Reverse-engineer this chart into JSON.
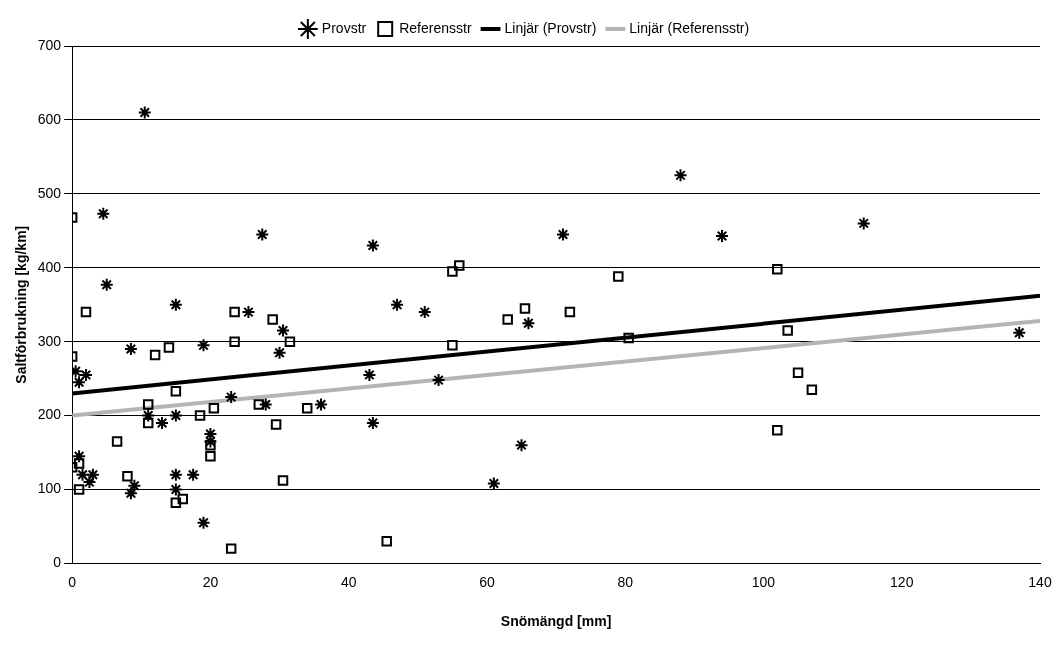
{
  "chart_data": {
    "type": "scatter",
    "xlabel": "Snömängd [mm]",
    "ylabel": "Saltförbrukning [kg/km]",
    "xlim": [
      0,
      140
    ],
    "xticks": [
      0,
      20,
      40,
      60,
      80,
      100,
      120,
      140
    ],
    "ylim": [
      0,
      700
    ],
    "yticks": [
      0,
      100,
      200,
      300,
      400,
      500,
      600,
      700
    ],
    "grid": "y",
    "legend": "top",
    "series": [
      {
        "name": "Provstr",
        "marker": "cross",
        "color": "#000000",
        "x": [
          0.5,
          1,
          2,
          1,
          1.5,
          2.5,
          3,
          8.5,
          8.5,
          9,
          10.5,
          4.5,
          5,
          11,
          13,
          15,
          15,
          15,
          15,
          17.5,
          19,
          19,
          20,
          20,
          23,
          25.5,
          27.5,
          28,
          30,
          30.5,
          36,
          43,
          43.5,
          43.5,
          47,
          51,
          53,
          61,
          65,
          66,
          71,
          88,
          94,
          114.5,
          137
        ],
        "values": [
          260,
          245,
          255,
          145,
          120,
          110,
          120,
          290,
          95,
          105,
          610,
          473,
          377,
          200,
          190,
          350,
          200,
          120,
          100,
          120,
          55,
          295,
          175,
          165,
          225,
          340,
          445,
          215,
          285,
          315,
          215,
          255,
          430,
          190,
          350,
          340,
          248,
          108,
          160,
          325,
          445,
          525,
          443,
          460,
          312
        ]
      },
      {
        "name": "Referensstr",
        "marker": "square",
        "color": "#000000",
        "x": [
          0,
          0,
          0,
          1,
          1,
          2,
          6.5,
          8,
          11,
          11,
          12,
          14,
          15,
          15,
          16,
          18.5,
          20,
          20,
          20.5,
          23.5,
          23.5,
          23,
          27,
          29,
          29.5,
          30.5,
          31.5,
          34,
          45.5,
          55,
          56,
          55,
          63,
          65.5,
          72,
          79,
          80.5,
          102,
          102,
          103.5,
          105,
          107
        ],
        "values": [
          468,
          280,
          130,
          135,
          100,
          340,
          165,
          118,
          190,
          215,
          282,
          292,
          233,
          82,
          87,
          200,
          145,
          160,
          210,
          340,
          300,
          20,
          215,
          330,
          188,
          112,
          300,
          210,
          30,
          395,
          403,
          295,
          330,
          345,
          340,
          388,
          305,
          398,
          180,
          315,
          258,
          235
        ]
      },
      {
        "name": "Linjär (Provstr)",
        "type": "line",
        "marker": "none",
        "color": "#000000",
        "x": [
          0,
          140
        ],
        "values": [
          230,
          362
        ]
      },
      {
        "name": "Linjär (Referensstr)",
        "type": "line",
        "marker": "none",
        "color": "#b4b4b4",
        "x": [
          0,
          140
        ],
        "values": [
          200,
          328
        ]
      }
    ]
  }
}
